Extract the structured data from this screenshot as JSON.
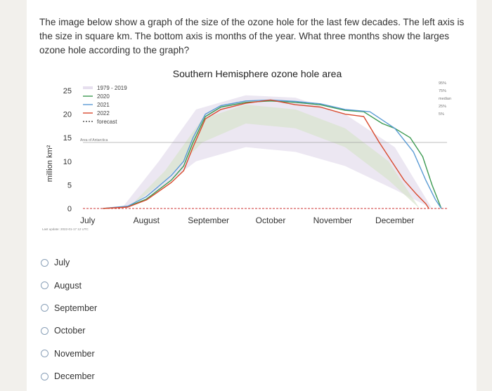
{
  "question": "The image below show a graph of the size of the ozone hole for the last few decades.  The left axis is the size in square km.  The bottom axis is months of the year.  What three months show the larges ozone hole according to the graph?",
  "options": [
    "July",
    "August",
    "September",
    "October",
    "November",
    "December"
  ],
  "chart_data": {
    "type": "line",
    "title": "Southern Hemisphere ozone hole area",
    "ylabel": "million km²",
    "ylim": [
      0,
      25
    ],
    "yticks": [
      0,
      5,
      10,
      15,
      20,
      25
    ],
    "xticks": [
      "July",
      "August",
      "September",
      "October",
      "November",
      "December"
    ],
    "legend": [
      "1979 - 2019",
      "2020",
      "2021",
      "2022",
      "forecast"
    ],
    "percentile_labels": [
      "95%",
      "75%",
      "median",
      "25%",
      "5%"
    ],
    "reference_label": "Area of Antarctica",
    "reference_value": 14,
    "footnote": "Last update: 2022-01-17 12 UTC",
    "series": [
      {
        "name": "2020",
        "color": "#3d9a52",
        "points": [
          [
            0.3,
            0
          ],
          [
            0.7,
            0.4
          ],
          [
            1.0,
            2
          ],
          [
            1.4,
            6
          ],
          [
            1.6,
            9
          ],
          [
            1.75,
            14
          ],
          [
            1.95,
            19.5
          ],
          [
            2.2,
            21.5
          ],
          [
            2.6,
            22.5
          ],
          [
            3.0,
            22.8
          ],
          [
            3.4,
            22.5
          ],
          [
            3.8,
            22
          ],
          [
            4.2,
            20.8
          ],
          [
            4.5,
            20.5
          ],
          [
            4.8,
            18
          ],
          [
            5.0,
            17
          ],
          [
            5.25,
            15
          ],
          [
            5.45,
            11
          ],
          [
            5.6,
            5
          ],
          [
            5.75,
            0
          ]
        ]
      },
      {
        "name": "2021",
        "color": "#5a9bd4",
        "points": [
          [
            0.3,
            0
          ],
          [
            0.7,
            0.5
          ],
          [
            1.0,
            2.5
          ],
          [
            1.4,
            7
          ],
          [
            1.6,
            10
          ],
          [
            1.75,
            15
          ],
          [
            1.95,
            20
          ],
          [
            2.2,
            21.8
          ],
          [
            2.6,
            22.8
          ],
          [
            3.0,
            23
          ],
          [
            3.4,
            22.7
          ],
          [
            3.8,
            22.2
          ],
          [
            4.2,
            21
          ],
          [
            4.6,
            20.5
          ],
          [
            5.0,
            17
          ],
          [
            5.3,
            12
          ],
          [
            5.5,
            6
          ],
          [
            5.65,
            2
          ],
          [
            5.75,
            0
          ]
        ]
      },
      {
        "name": "2022",
        "color": "#d84a2e",
        "points": [
          [
            0.3,
            0
          ],
          [
            0.7,
            0.3
          ],
          [
            1.0,
            1.8
          ],
          [
            1.4,
            5.5
          ],
          [
            1.6,
            8
          ],
          [
            1.75,
            13
          ],
          [
            1.95,
            19
          ],
          [
            2.2,
            21
          ],
          [
            2.6,
            22.3
          ],
          [
            3.0,
            23
          ],
          [
            3.4,
            22
          ],
          [
            3.8,
            21.5
          ],
          [
            4.2,
            20
          ],
          [
            4.5,
            19.5
          ],
          [
            4.75,
            14
          ],
          [
            4.95,
            10
          ],
          [
            5.15,
            6
          ],
          [
            5.35,
            3
          ],
          [
            5.5,
            1
          ],
          [
            5.55,
            0
          ]
        ]
      }
    ]
  }
}
